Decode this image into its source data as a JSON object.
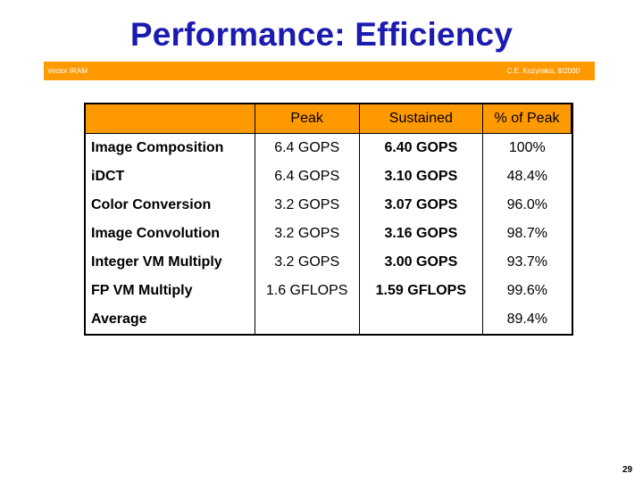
{
  "slide": {
    "title": "Performance: Efficiency",
    "header_left": "Vector IRAM",
    "header_right": "C.E. Kozyrakis, 8/2000",
    "page_number": "29"
  },
  "table": {
    "columns": [
      "",
      "Peak",
      "Sustained",
      "% of Peak"
    ],
    "rows": [
      {
        "name": "Image Composition",
        "peak": "6.4 GOPS",
        "sustained": "6.40 GOPS",
        "percent": "100%"
      },
      {
        "name": "iDCT",
        "peak": "6.4 GOPS",
        "sustained": "3.10 GOPS",
        "percent": "48.4%"
      },
      {
        "name": "Color Conversion",
        "peak": "3.2 GOPS",
        "sustained": "3.07 GOPS",
        "percent": "96.0%"
      },
      {
        "name": "Image Convolution",
        "peak": "3.2 GOPS",
        "sustained": "3.16 GOPS",
        "percent": "98.7%"
      },
      {
        "name": "Integer VM Multiply",
        "peak": "3.2 GOPS",
        "sustained": "3.00 GOPS",
        "percent": "93.7%"
      },
      {
        "name": "FP VM Multiply",
        "peak": "1.6 GFLOPS",
        "sustained": "1.59 GFLOPS",
        "percent": "99.6%"
      },
      {
        "name": "Average",
        "peak": "",
        "sustained": "",
        "percent": "89.4%"
      }
    ]
  },
  "colors": {
    "title": "#1b1bb0",
    "accent": "#ff9900"
  }
}
